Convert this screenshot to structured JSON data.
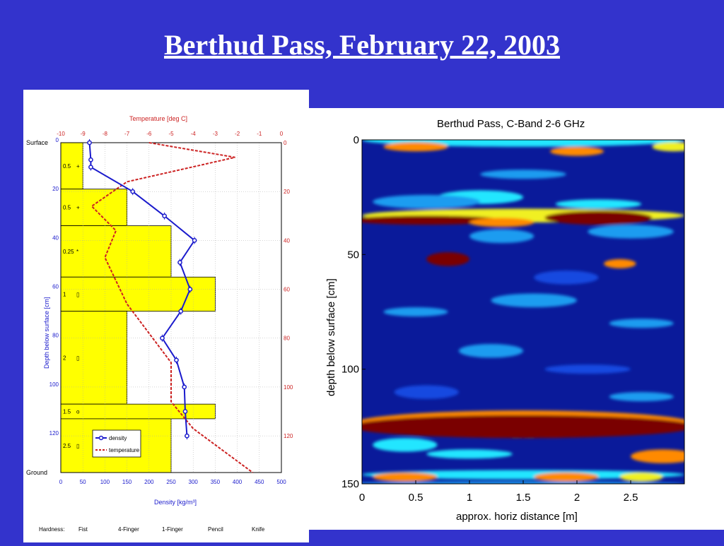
{
  "slide": {
    "title": "Berthud Pass, February 22, 2003"
  },
  "colors": {
    "background": "#3333cc",
    "density": "#1a1acc",
    "temperature": "#cc2222",
    "hardness_fill": "#ffff00",
    "radar_low": "#0a1a9a",
    "radar_high": "#7a0000"
  },
  "chart_data": [
    {
      "type": "line",
      "title": "",
      "xlabel": "Density [kg/m³]",
      "x2label": "Temperature [deg C]",
      "ylabel": "Depth below surface [cm]",
      "xlim": [
        0,
        500
      ],
      "x2lim": [
        -10,
        0
      ],
      "ylim": [
        0,
        135
      ],
      "y_inverted": true,
      "xticks": [
        "0",
        "50",
        "100",
        "150",
        "200",
        "250",
        "300",
        "350",
        "400",
        "450",
        "500"
      ],
      "x2ticks": [
        "-10",
        "-9",
        "-8",
        "-7",
        "-6",
        "-5",
        "-4",
        "-3",
        "-2",
        "-1",
        "0"
      ],
      "yticks_left": [
        "0",
        "20",
        "40",
        "60",
        "80",
        "100",
        "120"
      ],
      "yticks_right": [
        "0",
        "20",
        "40",
        "60",
        "80",
        "100",
        "120"
      ],
      "surface_label": "Surface",
      "ground_label": "Ground",
      "hardness_label": "Hardness:",
      "hardness_scale": [
        "Fist",
        "4-Finger",
        "1-Finger",
        "Pencil",
        "Knife"
      ],
      "legend": {
        "position": "bottom-right",
        "entries": [
          "density",
          "temperature"
        ]
      },
      "series": [
        {
          "name": "density",
          "axis": "bottom",
          "points": [
            [
              65,
              0
            ],
            [
              68,
              7
            ],
            [
              68,
              10
            ],
            [
              163,
              20
            ],
            [
              235,
              30
            ],
            [
              303,
              40
            ],
            [
              270,
              49
            ],
            [
              293,
              60
            ],
            [
              272,
              69
            ],
            [
              230,
              80
            ],
            [
              262,
              89
            ],
            [
              280,
              100
            ],
            [
              282,
              110
            ],
            [
              286,
              120
            ]
          ]
        },
        {
          "name": "temperature",
          "axis": "top",
          "points": [
            [
              -6.0,
              0
            ],
            [
              -2.1,
              6
            ],
            [
              -7.0,
              16
            ],
            [
              -8.6,
              26
            ],
            [
              -7.5,
              36
            ],
            [
              -8.0,
              47
            ],
            [
              -7.0,
              66
            ],
            [
              -5.0,
              90
            ],
            [
              -5.0,
              106
            ],
            [
              -4.0,
              117
            ],
            [
              -1.3,
              135
            ]
          ]
        }
      ],
      "hardness_layers": [
        {
          "top": 0,
          "bottom": 19,
          "hardness": 50,
          "grain": "0.5",
          "symbol": "+"
        },
        {
          "top": 19,
          "bottom": 34,
          "hardness": 150,
          "grain": "0.5",
          "symbol": "+"
        },
        {
          "top": 34,
          "bottom": 55,
          "hardness": 250,
          "grain": "0.25",
          "symbol": "*"
        },
        {
          "top": 55,
          "bottom": 69,
          "hardness": 350,
          "grain": "1",
          "symbol": "▯"
        },
        {
          "top": 69,
          "bottom": 107,
          "hardness": 150,
          "grain": "2",
          "symbol": "▯"
        },
        {
          "top": 107,
          "bottom": 113,
          "hardness": 350,
          "grain": "1.5",
          "symbol": "o"
        },
        {
          "top": 113,
          "bottom": 135,
          "hardness": 250,
          "grain": "2.5",
          "symbol": "▯"
        }
      ]
    },
    {
      "type": "heatmap",
      "title": "Berthud Pass, C-Band 2-6 GHz",
      "xlabel": "approx. horiz distance [m]",
      "ylabel": "depth below surface [cm]",
      "xlim": [
        0,
        3
      ],
      "ylim": [
        0,
        150
      ],
      "y_inverted": true,
      "xticks": [
        "0",
        "0.5",
        "1",
        "1.5",
        "2",
        "2.5"
      ],
      "yticks": [
        "0",
        "50",
        "100",
        "150"
      ]
    }
  ]
}
